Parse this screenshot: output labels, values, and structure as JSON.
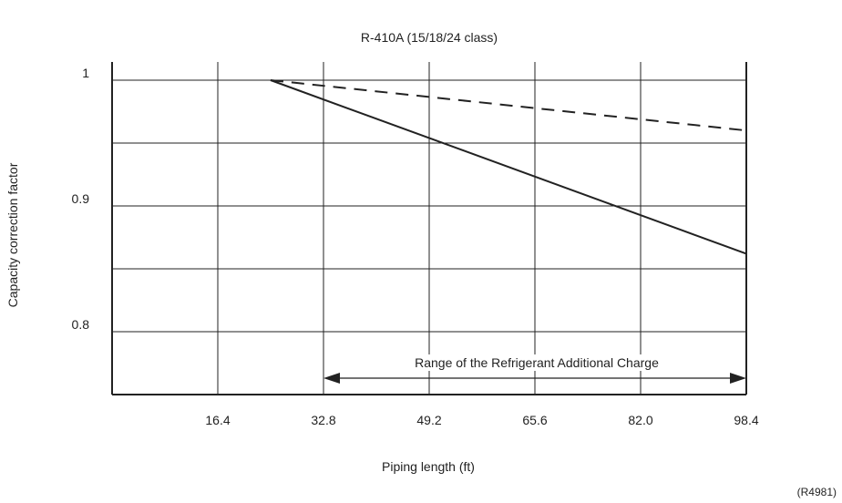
{
  "chart_data": {
    "type": "line",
    "title": "R-410A (15/18/24 class)",
    "xlabel": "Piping length (ft)",
    "ylabel": "Capacity correction factor",
    "x_ticks": [
      "16.4",
      "32.8",
      "49.2",
      "65.6",
      "82.0",
      "98.4"
    ],
    "y_ticks": [
      "1",
      "0.9",
      "0.8"
    ],
    "xlim": [
      0,
      98.4
    ],
    "ylim": [
      0.75,
      1.0
    ],
    "grid": true,
    "series": [
      {
        "style": "solid",
        "x": [
          24.6,
          98.4
        ],
        "y": [
          1.0,
          0.862
        ]
      },
      {
        "style": "dashed",
        "x": [
          24.6,
          98.4
        ],
        "y": [
          1.0,
          0.96
        ]
      }
    ],
    "annotation": {
      "text": "Range of the Refrigerant Additional Charge",
      "x_start": 32.8,
      "x_end": 98.4
    },
    "figure_code": "(R4981)",
    "colors": {
      "line": "#222222",
      "grid": "#222222",
      "background": "#ffffff"
    }
  }
}
